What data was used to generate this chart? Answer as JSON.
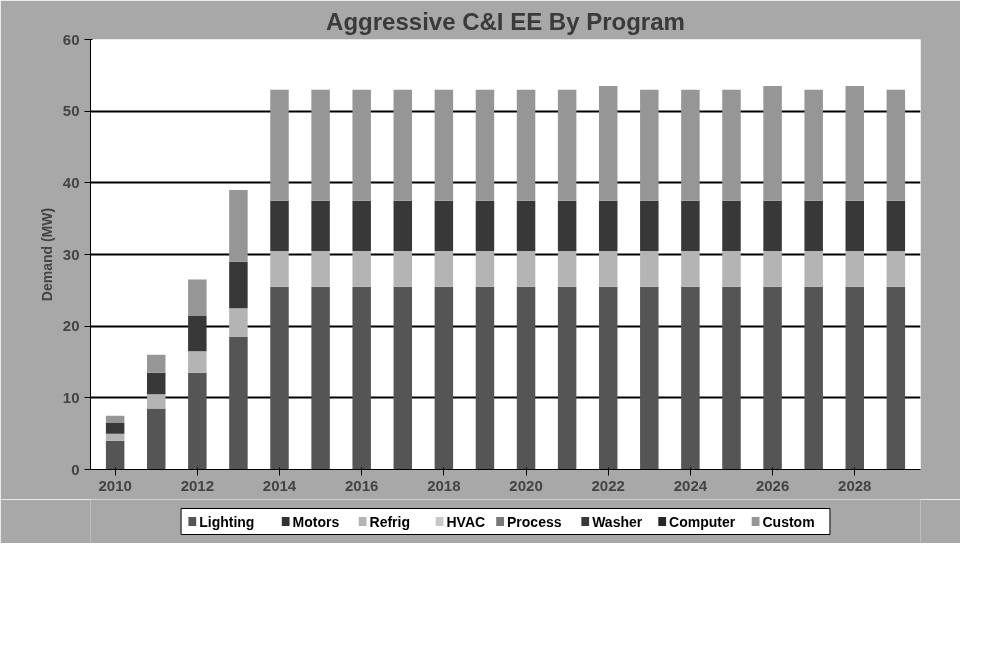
{
  "chart_data": {
    "type": "bar",
    "title": "Aggressive C&I EE By Program",
    "ylabel": "Demand (MW)",
    "stacked": true,
    "categories": [
      "2010",
      null,
      "2012",
      null,
      "2014",
      null,
      "2016",
      null,
      "2018",
      null,
      "2020",
      null,
      "2022",
      null,
      "2024",
      null,
      "2026",
      null,
      "2028",
      null
    ],
    "series": [
      {
        "name": "Lighting",
        "color": "#555555",
        "values": [
          4,
          8.5,
          13.5,
          18.5,
          25.5,
          25.5,
          25.5,
          25.5,
          25.5,
          25.5,
          25.5,
          25.5,
          25.5,
          25.5,
          25.5,
          25.5,
          25.5,
          25.5,
          25.5,
          25.5
        ]
      },
      {
        "name": "Motors",
        "color": "#333333",
        "values": [
          0,
          0,
          0,
          0,
          0,
          0,
          0,
          0,
          0,
          0,
          0,
          0,
          0,
          0,
          0,
          0,
          0,
          0,
          0,
          0
        ]
      },
      {
        "name": "Refrig",
        "color": "#b4b4b4",
        "values": [
          1,
          2,
          3,
          4,
          5,
          5,
          5,
          5,
          5,
          5,
          5,
          5,
          5,
          5,
          5,
          5,
          5,
          5,
          5,
          5
        ]
      },
      {
        "name": "HVAC",
        "color": "#c8c8c8",
        "values": [
          0,
          0,
          0,
          0,
          0,
          0,
          0,
          0,
          0,
          0,
          0,
          0,
          0,
          0,
          0,
          0,
          0,
          0,
          0,
          0
        ]
      },
      {
        "name": "Process",
        "color": "#787878",
        "values": [
          0,
          0,
          0,
          0,
          0,
          0,
          0,
          0,
          0,
          0,
          0,
          0,
          0,
          0,
          0,
          0,
          0,
          0,
          0,
          0
        ]
      },
      {
        "name": "Washer",
        "color": "#383838",
        "values": [
          1.5,
          3,
          5,
          6.5,
          7,
          7,
          7,
          7,
          7,
          7,
          7,
          7,
          7,
          7,
          7,
          7,
          7,
          7,
          7,
          7
        ]
      },
      {
        "name": "Computer",
        "color": "#262626",
        "values": [
          0,
          0,
          0,
          0,
          0,
          0,
          0,
          0,
          0,
          0,
          0,
          0,
          0,
          0,
          0,
          0,
          0,
          0,
          0,
          0
        ]
      },
      {
        "name": "Custom",
        "color": "#969696",
        "values": [
          1,
          2.5,
          5,
          10,
          15.5,
          15.5,
          15.5,
          15.5,
          15.5,
          15.5,
          15.5,
          15.5,
          16,
          15.5,
          15.5,
          15.5,
          16,
          15.5,
          16,
          15.5
        ]
      }
    ],
    "ylim": [
      0,
      60
    ],
    "yticks": [
      0,
      10,
      20,
      30,
      40,
      50,
      60
    ],
    "grid": "y",
    "legend": "bottom"
  }
}
